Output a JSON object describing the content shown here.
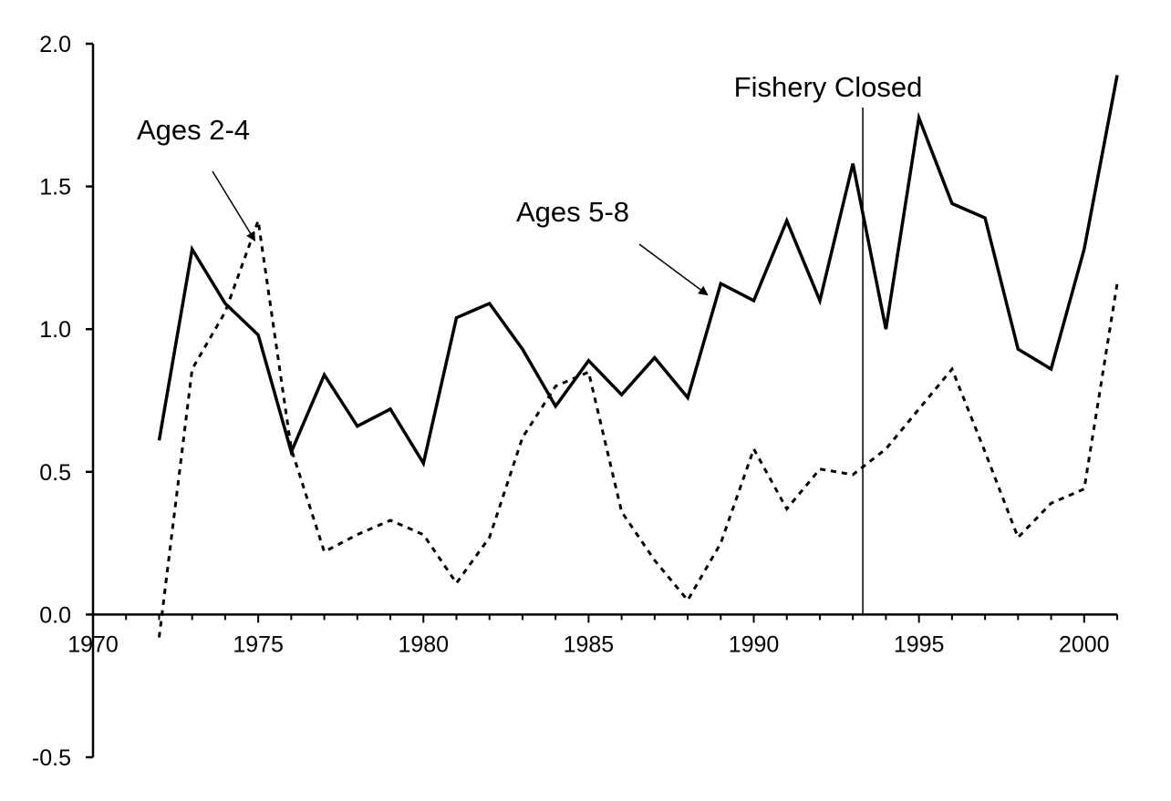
{
  "chart_data": {
    "type": "line",
    "title": "",
    "xlabel": "",
    "ylabel": "",
    "xlim": [
      1970,
      2001
    ],
    "ylim": [
      -0.5,
      2.0
    ],
    "grid": false,
    "legend": "none",
    "x_ticks": [
      "1970",
      "1975",
      "1980",
      "1985",
      "1990",
      "1995",
      "2000"
    ],
    "x_tick_values": [
      1970,
      1975,
      1980,
      1985,
      1990,
      1995,
      2000
    ],
    "y_ticks": [
      "2.0",
      "1.5",
      "1.0",
      "0.5",
      "0.0",
      "-0.5"
    ],
    "y_tick_values": [
      2.0,
      1.5,
      1.0,
      0.5,
      0.0,
      -0.5
    ],
    "x": [
      1972,
      1973,
      1974,
      1975,
      1976,
      1977,
      1978,
      1979,
      1980,
      1981,
      1982,
      1983,
      1984,
      1985,
      1986,
      1987,
      1988,
      1989,
      1990,
      1991,
      1992,
      1993,
      1994,
      1995,
      1996,
      1997,
      1998,
      1999,
      2000,
      2001
    ],
    "series": [
      {
        "style": "solid",
        "color": "#000000",
        "values": [
          0.61,
          1.28,
          1.09,
          0.98,
          0.57,
          0.84,
          0.66,
          0.72,
          0.53,
          1.04,
          1.09,
          0.93,
          0.73,
          0.89,
          0.77,
          0.9,
          0.76,
          1.16,
          1.1,
          1.38,
          1.1,
          1.58,
          1.0,
          1.74,
          1.44,
          1.39,
          0.93,
          0.86,
          1.28,
          1.89
        ]
      },
      {
        "style": "dashed",
        "color": "#000000",
        "values": [
          -0.08,
          0.86,
          1.06,
          1.38,
          0.58,
          0.22,
          0.28,
          0.33,
          0.28,
          0.11,
          0.27,
          0.62,
          0.8,
          0.85,
          0.36,
          0.19,
          0.05,
          0.25,
          0.58,
          0.37,
          0.51,
          0.49,
          0.58,
          0.72,
          0.86,
          0.57,
          0.27,
          0.39,
          0.44,
          1.16
        ]
      }
    ],
    "vline": {
      "x": 1993.3,
      "label": "Fishery Closed"
    },
    "annotations": [
      {
        "text": "Ages 2-4",
        "points_to": {
          "x": 1974.9,
          "y": 1.31
        }
      },
      {
        "text": "Ages 5-8",
        "points_to": {
          "x": 1988.6,
          "y": 1.12
        }
      }
    ]
  }
}
